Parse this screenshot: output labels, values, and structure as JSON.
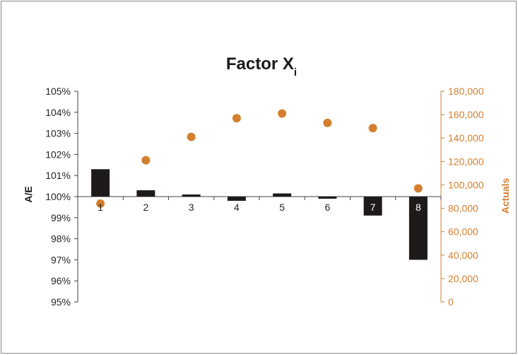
{
  "chart_data": {
    "type": "bar",
    "title": "Factor X",
    "title_subscript": "i",
    "categories": [
      "1",
      "2",
      "3",
      "4",
      "5",
      "6",
      "7",
      "8"
    ],
    "series": [
      {
        "name": "",
        "type": "bar",
        "axis": "left",
        "color": "#1f1a1a",
        "values": [
          1.013,
          1.003,
          1.001,
          0.998,
          1.0015,
          0.999,
          0.991,
          0.97
        ]
      },
      {
        "name": "",
        "type": "scatter",
        "axis": "right",
        "color": "#d37f2f",
        "values": [
          84000,
          121000,
          141000,
          157000,
          161000,
          153000,
          148500,
          97000
        ]
      }
    ],
    "ylabel": "A/E",
    "ylabel_right": "Actuals",
    "ylim": [
      0.95,
      1.05
    ],
    "ylim_right": [
      0,
      180000
    ],
    "yticks": [
      "95%",
      "96%",
      "97%",
      "98%",
      "99%",
      "100%",
      "101%",
      "102%",
      "103%",
      "104%",
      "105%"
    ],
    "yticks_right": [
      "0",
      "20,000",
      "40,000",
      "60,000",
      "80,000",
      "100,000",
      "120,000",
      "140,000",
      "160,000",
      "180,000"
    ],
    "baseline": 1.0,
    "grid": false,
    "legend": "none"
  }
}
